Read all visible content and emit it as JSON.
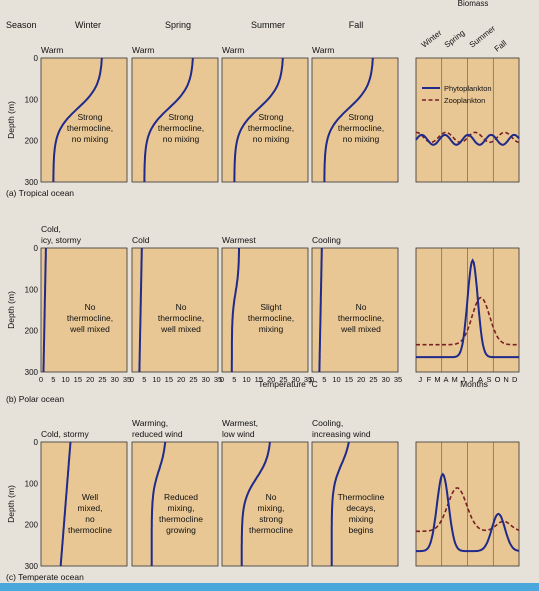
{
  "header": {
    "season_label": "Season",
    "seasons": [
      "Winter",
      "Spring",
      "Summer",
      "Fall"
    ],
    "biomass_label": "Biomass",
    "biomass_seasons": [
      "Winter",
      "Spring",
      "Summer",
      "Fall"
    ]
  },
  "axes": {
    "y_label": "Depth (m)",
    "y_ticks": [
      "0",
      "100",
      "200",
      "300"
    ],
    "x_ticks": [
      "0",
      "5",
      "10",
      "15",
      "20",
      "25",
      "30",
      "35"
    ],
    "x_label": "Temperature °C",
    "month_ticks": [
      "J",
      "F",
      "M",
      "A",
      "M",
      "J",
      "J",
      "A",
      "S",
      "O",
      "N",
      "D"
    ],
    "month_label": "Months"
  },
  "legend": {
    "phytoplankton": "Phytoplankton",
    "zooplankton": "Zooplankton"
  },
  "colors": {
    "curve": "#1f2a8a",
    "zooplankton": "#7a1f22",
    "panel_fill": "#e8c795",
    "page": "#e6e1d9",
    "accent_bar": "#4aa7dc"
  },
  "rows": [
    {
      "caption_letter": "(a)",
      "caption_text": "Tropical ocean",
      "show_x_ticks": false,
      "panels": [
        {
          "condition": "Warm",
          "text": [
            "Strong",
            "thermocline,",
            "no mixing"
          ],
          "temp_surface": 25,
          "temp_deep": 5,
          "thermo_depth": 90
        },
        {
          "condition": "Warm",
          "text": [
            "Strong",
            "thermocline,",
            "no mixing"
          ],
          "temp_surface": 25,
          "temp_deep": 5,
          "thermo_depth": 90
        },
        {
          "condition": "Warm",
          "text": [
            "Strong",
            "thermocline,",
            "no mixing"
          ],
          "temp_surface": 25,
          "temp_deep": 5,
          "thermo_depth": 90
        },
        {
          "condition": "Warm",
          "text": [
            "Strong",
            "thermocline,",
            "no mixing"
          ],
          "temp_surface": 25,
          "temp_deep": 5,
          "thermo_depth": 90
        }
      ],
      "biomass": {
        "type": "tropical",
        "show_legend": true
      }
    },
    {
      "caption_letter": "(b)",
      "caption_text": "Polar ocean",
      "show_x_ticks": true,
      "panels": [
        {
          "condition": "Cold, icy, stormy",
          "text": [
            "No",
            "thermocline,",
            "well mixed"
          ],
          "temp_surface": 2,
          "temp_deep": 1,
          "thermo_depth": 0
        },
        {
          "condition": "Cold",
          "text": [
            "No",
            "thermocline,",
            "well mixed"
          ],
          "temp_surface": 4,
          "temp_deep": 3,
          "thermo_depth": 0
        },
        {
          "condition": "Warmest",
          "text": [
            "Slight",
            "thermocline,",
            "mixing"
          ],
          "temp_surface": 7,
          "temp_deep": 4,
          "thermo_depth": 80
        },
        {
          "condition": "Cooling",
          "text": [
            "No",
            "thermocline,",
            "well mixed"
          ],
          "temp_surface": 4,
          "temp_deep": 3,
          "thermo_depth": 0
        }
      ],
      "biomass": {
        "type": "polar",
        "show_legend": false
      }
    },
    {
      "caption_letter": "(c)",
      "caption_text": "Temperate ocean",
      "show_x_ticks": false,
      "panels": [
        {
          "condition": "Cold, stormy",
          "text": [
            "Well",
            "mixed,",
            "no",
            "thermocline"
          ],
          "temp_surface": 12,
          "temp_deep": 8,
          "thermo_depth": 0
        },
        {
          "condition": "Warming, reduced wind",
          "text": [
            "Reduced",
            "mixing,",
            "thermocline",
            "growing"
          ],
          "temp_surface": 14,
          "temp_deep": 8,
          "thermo_depth": 50
        },
        {
          "condition": "Warmest, low wind",
          "text": [
            "No",
            "mixing,",
            "strong",
            "thermocline"
          ],
          "temp_surface": 20,
          "temp_deep": 8,
          "thermo_depth": 65
        },
        {
          "condition": "Cooling, increasing wind",
          "text": [
            "Thermocline",
            "decays,",
            "mixing",
            "begins"
          ],
          "temp_surface": 16,
          "temp_deep": 8,
          "thermo_depth": 40
        }
      ],
      "biomass": {
        "type": "temperate",
        "show_legend": false
      }
    }
  ]
}
